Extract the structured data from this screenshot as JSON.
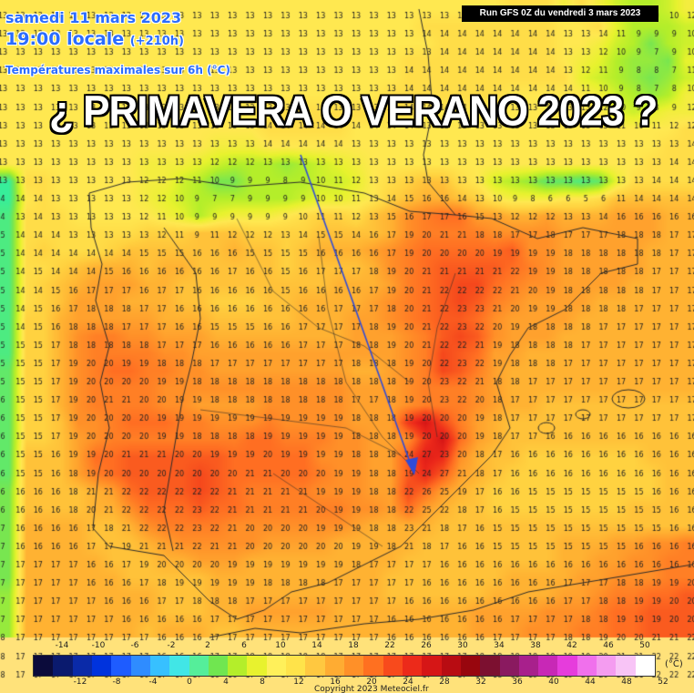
{
  "header": {
    "date": "samedi 11 mars 2023",
    "time": "19:00 locale",
    "offset": "(+210h)",
    "variable": "Températures maximales sur 6h (°C)"
  },
  "run_label": "Run GFS 0Z du vendredi 3 mars 2023",
  "headline": "¿ PRIMAVERA O VERANO 2023 ?",
  "colorbar": {
    "unit": "(°C)",
    "labels_top": [
      "-14",
      "-10",
      "-6",
      "-2",
      "2",
      "6",
      "10",
      "14",
      "18",
      "22",
      "26",
      "30",
      "34",
      "38",
      "42",
      "46",
      "50"
    ],
    "labels_bottom": [
      "-12",
      "-8",
      "-4",
      "0",
      "4",
      "8",
      "12",
      "16",
      "20",
      "24",
      "28",
      "32",
      "36",
      "40",
      "44",
      "48",
      "52"
    ],
    "colors": [
      "#0b0b3b",
      "#0a1a6e",
      "#0a2aa8",
      "#0033dd",
      "#1e5cff",
      "#2f8cff",
      "#37c0ff",
      "#41e6e6",
      "#55ee9a",
      "#70e650",
      "#b4ee2a",
      "#e8f22e",
      "#fff05a",
      "#ffe34a",
      "#ffc840",
      "#ffac32",
      "#ff9028",
      "#ff7020",
      "#f84a1c",
      "#ec2a1a",
      "#d61616",
      "#b80c12",
      "#98060e",
      "#7c1030",
      "#8a1a60",
      "#a8208c",
      "#c828b6",
      "#e63cdc",
      "#f070ec",
      "#f49cf0",
      "#f8c4f6",
      "#ffffff"
    ]
  },
  "copyright": "Copyright 2023 Meteociel.fr",
  "temperature_grid": {
    "rows": [
      "13 13 13 13 13 13 13 13 13 13 13 13 13 13 13 13 13 13 13 13 13 13 13 13 13 13 13 13 13 14 14 14 12 14 12 10 9 9 10 12",
      "13 13 13 13 13 13 13 13 13 13 13 13 13 13 13 13 13 13 13 13 13 13 13 13 14 14 14 14 14 14 14 14 13 13 14 11 9 9 9 10",
      "13 13 13 13 13 13 13 13 13 13 13 13 13 13 13 13 13 13 13 13 13 13 13 13 13 14 14 14 14 14 14 14 13 13 12 10 9 7 9 10",
      "13 13 13 13 13 13 13 13 13 13 13 13 13 13 13 13 13 13 13 13 13 13 13 14 14 14 14 14 14 14 14 14 13 12 11 9 8 8 7 11",
      "13 13 13 13 13 13 13 13 13 13 13 13 13 13 13 13 13 13 13 13 13 13 13 14 14 14 14 14 14 14 14 14 14 11 10 9 8 7 8 10",
      "13 13 13 13 13 13 13 13 13 13 13 13 13 13 13 13 13 13 13 13 13 13 14 14 14 14 14 14 14 13 13 13 13 13 12 10 9 8 9 12",
      "13 13 13 13 13 13 13 13 13 13 13 13 13 13 13 14 14 14 14 14 14 14 14 14 13 13 13 13 13 13 13 13 13 13 13 11 10 11 12 12",
      "13 13 13 13 13 13 13 13 13 13 13 13 13 13 13 14 14 14 14 14 13 13 13 13 13 13 13 13 13 13 13 13 13 13 13 13 13 13 13 14",
      "13 13 13 13 13 13 13 13 13 13 13 13 12 12 12 13 13 13 13 13 13 13 13 13 13 13 13 13 13 13 13 13 13 13 13 13 13 13 14 14",
      "13 13 13 13 13 13 13 13 12 12 12 11 10 9 9 9 8 9 10 11 12 13 13 13 13 13 13 13 13 13 13 13 13 13 13 13 13 14 14 14",
      "4 14 14 13 13 13 13 13 12 12 10 9 7 7 9 9 9 9 10 10 11 13 14 15 16 16 14 13 10 9 8 6 6 5 6 11 14 14 14 14",
      "4 13 14 13 13 13 13 13 12 11 10 9 9 9 9 9 9 10 11 11 12 13 15 16 17 17 16 15 13 12 12 12 13 13 14 16 16 16 16 16",
      "5 14 14 14 13 13 13 13 13 12 11 9 11 12 12 12 13 14 15 15 14 16 17 19 20 21 21 18 18 17 17 18 17 17 17 18 18 18 17 17",
      "5 14 14 14 14 14 14 14 15 15 15 16 16 16 15 15 15 15 16 16 16 16 17 19 20 20 20 20 19 19 19 19 18 18 18 18 18 18 17 17",
      "5 14 15 14 14 14 15 16 16 16 16 16 16 17 16 16 15 16 17 17 17 18 19 20 21 21 21 21 21 22 19 19 18 18 18 18 18 17 17 17",
      "5 14 14 15 16 17 17 17 16 17 17 16 16 16 16 16 15 16 16 16 16 17 19 20 21 22 22 22 22 21 20 19 18 18 18 18 18 17 17 17",
      "5 14 15 16 17 18 18 18 17 17 16 16 16 16 16 16 16 16 16 17 17 17 18 20 21 22 23 23 21 20 19 19 18 18 18 18 17 17 17 17",
      "5 14 15 16 18 18 18 17 17 17 16 16 15 15 15 16 16 17 17 17 17 18 19 20 21 22 23 22 20 19 18 18 18 18 17 17 17 17 17 17",
      "5 15 15 17 18 18 18 18 18 17 17 17 16 16 16 16 16 17 17 17 18 18 19 20 21 22 22 21 19 18 18 18 18 17 17 17 17 17 17 17",
      "5 15 15 17 19 20 20 19 19 18 18 18 17 17 17 17 17 17 17 17 18 18 18 19 20 22 23 22 19 18 18 18 17 17 17 17 17 17 17 17",
      "5 15 15 17 19 20 20 20 20 19 19 18 18 18 18 18 18 18 18 18 18 18 18 19 20 23 22 21 18 18 17 17 17 17 17 17 17 17 17 17",
      "6 15 15 17 19 20 21 21 20 20 19 19 18 18 18 18 18 18 18 18 17 17 18 19 20 23 22 20 18 17 17 17 17 17 17 17 17 17 17 17",
      "6 15 15 17 19 20 20 20 20 19 19 19 19 19 19 19 19 19 19 19 18 18 18 19 20 20 20 19 18 17 17 17 17 17 17 17 17 17 17 17",
      "6 15 15 17 19 20 20 20 20 19 19 18 18 18 18 19 19 19 19 19 18 18 18 19 20 20 20 19 18 17 17 16 16 16 16 16 16 16 16 16",
      "6 15 15 16 19 19 20 21 21 21 20 20 19 19 19 20 19 19 19 19 18 18 18 24 27 23 20 18 17 16 16 16 16 16 16 16 16 16 16 16",
      "6 15 15 16 18 19 20 20 20 20 20 20 20 20 21 21 20 20 20 19 19 18 18 19 24 27 21 18 17 16 16 16 16 16 16 16 16 16 16 16",
      "6 16 16 16 18 21 21 22 22 22 22 22 22 21 21 21 21 21 19 19 19 18 18 22 26 25 19 17 16 16 15 15 15 15 15 15 15 16 16 16",
      "6 16 16 16 18 20 21 22 22 22 22 23 22 21 21 21 21 21 20 19 19 18 18 22 25 22 18 17 16 15 15 15 15 15 15 15 15 15 16 16",
      "7 16 16 16 16 17 18 21 22 22 22 23 22 21 20 20 20 20 19 19 19 18 18 23 21 18 17 16 15 15 15 15 15 15 15 15 15 15 16 16",
      "7 16 16 16 16 17 17 19 21 21 21 22 21 21 20 20 20 20 20 20 19 19 18 21 18 17 16 16 15 15 15 15 15 15 15 15 16 16 16 16",
      "7 17 17 17 17 16 16 17 19 20 20 20 20 19 19 19 19 19 19 19 18 17 17 17 17 16 16 16 16 16 16 16 16 16 16 16 16 16 16 16",
      "7 17 17 17 17 16 16 16 17 18 19 19 19 19 19 18 18 18 18 17 17 17 17 17 16 16 16 16 16 16 16 16 17 17 17 18 18 19 19 20",
      "7 17 17 17 17 17 16 16 16 17 17 18 18 18 17 17 17 17 17 17 17 17 17 16 16 16 16 16 16 16 16 16 17 17 18 18 19 19 20 20",
      "7 17 17 17 17 17 17 16 16 16 16 16 17 17 17 17 17 17 17 17 17 17 16 16 16 16 16 16 16 17 17 17 17 18 18 19 19 19 20 20",
      "8 17 17 17 17 17 17 17 17 16 16 16 17 17 17 17 17 17 17 17 17 17 16 16 16 16 16 16 17 17 17 17 18 18 19 20 20 21 21 22",
      "8 17 17 17 17 17 17 17 17 16 16 16 17 17 18 18 18 18 18 17 17 17 17 17 17 17 17 18 18 18 18 19 19 19 20 21 21 22 22 22",
      "8 17 17 17 17 17 17 17 16 17 17 17 16 16 17 17 17 17 17 17 17 17 17 17 17 17 17 18 18 18 19 19 19 20 20 21 21 22 22 22"
    ]
  }
}
